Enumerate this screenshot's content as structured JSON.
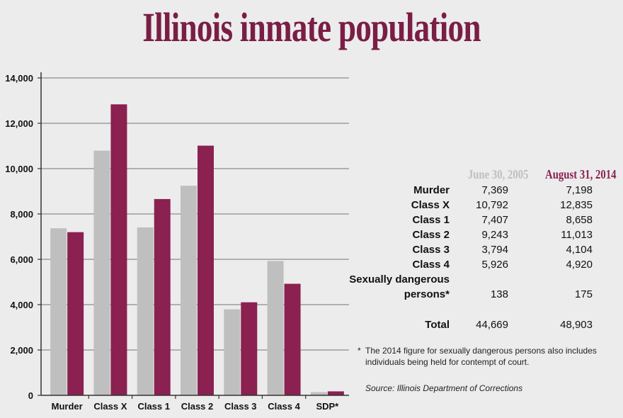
{
  "title": "Illinois inmate population",
  "colors": {
    "title": "#7a1e45",
    "series_2005": "#bfbfbf",
    "series_2014": "#8a2150",
    "axis": "#333333",
    "grid": "#8c8c8c"
  },
  "chart_data": {
    "type": "bar",
    "categories": [
      "Murder",
      "Class X",
      "Class 1",
      "Class 2",
      "Class 3",
      "Class 4",
      "SDP*"
    ],
    "series": [
      {
        "name": "June 30, 2005",
        "values": [
          7369,
          10792,
          7407,
          9243,
          3794,
          5926,
          138
        ]
      },
      {
        "name": "August 31, 2014",
        "values": [
          7198,
          12835,
          8658,
          11013,
          4104,
          4920,
          175
        ]
      }
    ],
    "title": "Illinois inmate population",
    "xlabel": "",
    "ylabel": "",
    "ylim": [
      0,
      14000
    ],
    "yticks": [
      0,
      2000,
      4000,
      6000,
      8000,
      10000,
      12000,
      14000
    ],
    "ytick_labels": [
      "0",
      "2,000",
      "4,000",
      "6,000",
      "8,000",
      "10,000",
      "12,000",
      "14,000"
    ],
    "grid": true,
    "legend": "none"
  },
  "table": {
    "headers": [
      "June 30, 2005",
      "August 31, 2014"
    ],
    "rows": [
      {
        "label": "Murder",
        "v2005": "7,369",
        "v2014": "7,198"
      },
      {
        "label": "Class X",
        "v2005": "10,792",
        "v2014": "12,835"
      },
      {
        "label": "Class 1",
        "v2005": "7,407",
        "v2014": "8,658"
      },
      {
        "label": "Class 2",
        "v2005": "9,243",
        "v2014": "11,013"
      },
      {
        "label": "Class 3",
        "v2005": "3,794",
        "v2014": "4,104"
      },
      {
        "label": "Class 4",
        "v2005": "5,926",
        "v2014": "4,920"
      }
    ],
    "sdp": {
      "label_line1": "Sexually dangerous",
      "label_line2": "persons*",
      "v2005": "138",
      "v2014": "175"
    },
    "total": {
      "label": "Total",
      "v2005": "44,669",
      "v2014": "48,903"
    }
  },
  "footnote": {
    "marker": "*",
    "text": "The 2014 figure for sexually dangerous persons also includes individuals being held for contempt of court."
  },
  "source": "Source: Illinois Department of Corrections"
}
